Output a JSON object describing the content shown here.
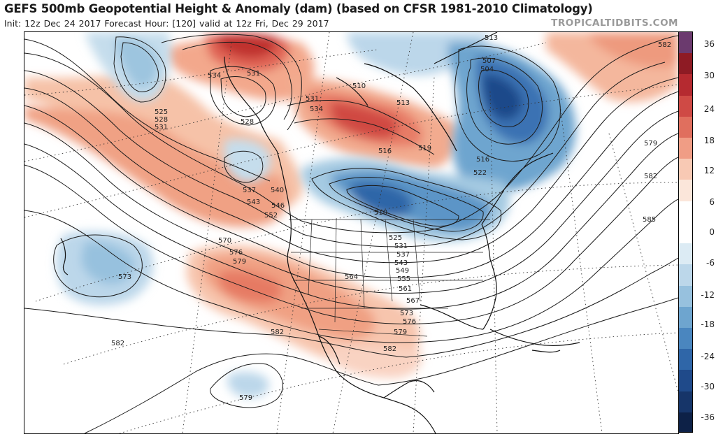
{
  "header": {
    "title": "GEFS 500mb Geopotential Height & Anomaly (dam) (based on CFSR 1981-2010 Climatology)",
    "subtitle": "Init: 12z Dec 24 2017   Forecast Hour: [120]   valid at 12z Fri, Dec 29 2017",
    "brand": "TROPICALTIDBITS.COM"
  },
  "colorbar": {
    "labels": [
      "36",
      "30",
      "24",
      "18",
      "12",
      "6",
      "0",
      "-6",
      "-12",
      "-18",
      "-24",
      "-30",
      "-36"
    ],
    "colors": [
      "#6b3a6e",
      "#8e1b24",
      "#b52a30",
      "#cf4a45",
      "#e06f5e",
      "#f09d85",
      "#f8c9b4",
      "#fbe6da",
      "#ffffff",
      "#ffffff",
      "#dcebf4",
      "#bcd7ea",
      "#97c1de",
      "#6ea5cf",
      "#4a86bf",
      "#2f66a8",
      "#1f4a8a",
      "#163569",
      "#0d2147"
    ]
  },
  "contours": {
    "labels": [
      "534",
      "531",
      "525",
      "528",
      "531",
      "528",
      "531",
      "534",
      "513",
      "510",
      "516",
      "519",
      "513",
      "507",
      "504",
      "516",
      "522",
      "579",
      "582",
      "582",
      "585",
      "537",
      "540",
      "543",
      "546",
      "552",
      "510",
      "570",
      "576",
      "579",
      "573",
      "525",
      "531",
      "537",
      "543",
      "549",
      "555",
      "561",
      "564",
      "567",
      "573",
      "576",
      "579",
      "582",
      "582",
      "582",
      "579"
    ]
  }
}
